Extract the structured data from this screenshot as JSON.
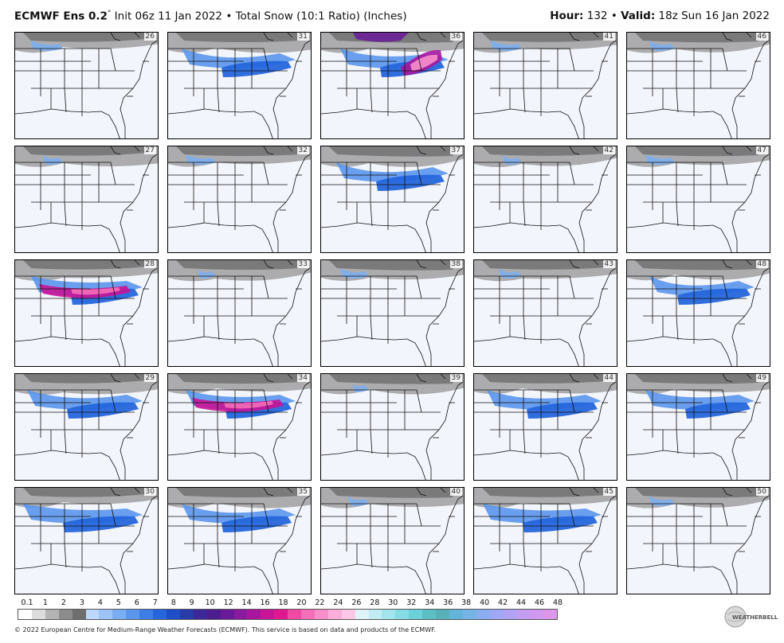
{
  "header": {
    "model": "ECMWF Ens 0.2",
    "degree": "°",
    "init": "Init 06z 11 Jan 2022",
    "bullet": "•",
    "product": "Total Snow (10:1 Ratio) (Inches)",
    "hour_label": "Hour:",
    "hour_value": "132",
    "valid_label": "Valid:",
    "valid_value": "18z Sun 16 Jan 2022"
  },
  "panels": [
    {
      "member": "26",
      "snow": "light"
    },
    {
      "member": "31",
      "snow": "band"
    },
    {
      "member": "36",
      "snow": "heavy-ne"
    },
    {
      "member": "41",
      "snow": "light"
    },
    {
      "member": "46",
      "snow": "light"
    },
    {
      "member": "27",
      "snow": "light"
    },
    {
      "member": "32",
      "snow": "light"
    },
    {
      "member": "37",
      "snow": "moderate"
    },
    {
      "member": "42",
      "snow": "light"
    },
    {
      "member": "47",
      "snow": "light"
    },
    {
      "member": "28",
      "snow": "heavy"
    },
    {
      "member": "33",
      "snow": "light"
    },
    {
      "member": "38",
      "snow": "light"
    },
    {
      "member": "43",
      "snow": "light"
    },
    {
      "member": "48",
      "snow": "moderate"
    },
    {
      "member": "29",
      "snow": "moderate"
    },
    {
      "member": "34",
      "snow": "heavy"
    },
    {
      "member": "39",
      "snow": "light"
    },
    {
      "member": "44",
      "snow": "moderate"
    },
    {
      "member": "49",
      "snow": "moderate"
    },
    {
      "member": "30",
      "snow": "moderate"
    },
    {
      "member": "35",
      "snow": "moderate"
    },
    {
      "member": "40",
      "snow": "light"
    },
    {
      "member": "45",
      "snow": "moderate"
    },
    {
      "member": "50",
      "snow": "light"
    }
  ],
  "colorbar": {
    "labels": [
      "0.1",
      "1",
      "2",
      "3",
      "4",
      "5",
      "6",
      "7",
      "8",
      "9",
      "10",
      "12",
      "14",
      "16",
      "18",
      "20",
      "22",
      "24",
      "26",
      "28",
      "30",
      "32",
      "34",
      "36",
      "38",
      "40",
      "42",
      "44",
      "46",
      "48"
    ],
    "colors": [
      "#ffffff",
      "#dcdcdc",
      "#b4b4b4",
      "#8c8c8c",
      "#6e6e6e",
      "#bcd8fa",
      "#9cc4f6",
      "#7aaef2",
      "#5a96ec",
      "#3d7ee6",
      "#2566dc",
      "#1e4fc8",
      "#283ca8",
      "#3c2896",
      "#4b1d8f",
      "#6a1a98",
      "#8a1aa0",
      "#a8169e",
      "#c81496",
      "#e01890",
      "#f04aa4",
      "#f56eb8",
      "#f88fca",
      "#fbaed9",
      "#fdc8e6",
      "#dff3f8",
      "#c0ecf2",
      "#a2e4ec",
      "#86dbe4",
      "#6cd0d8",
      "#5bbfc4",
      "#58b0b8",
      "#62b4d8",
      "#76b4e8",
      "#8aaef0",
      "#9ea8f4",
      "#b2a2f4",
      "#c49cf2",
      "#d098ee",
      "#dc96ea"
    ],
    "colors_note": ""
  },
  "copyright": "© 2022 European Centre for Medium-Range Weather Forecasts (ECMWF). This service is based on data and products of the ECMWF.",
  "logo_text": "WEATHERBELL"
}
